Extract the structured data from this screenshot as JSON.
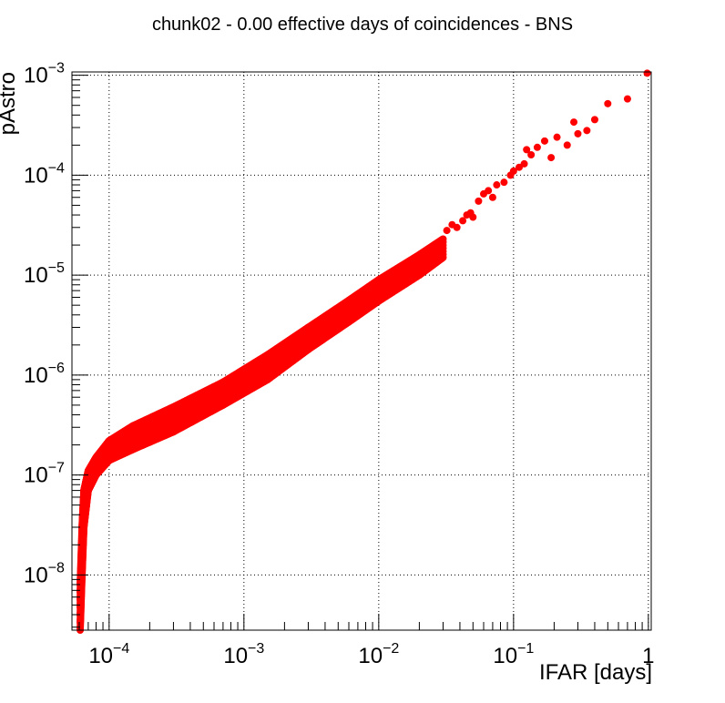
{
  "chart_data": {
    "type": "scatter",
    "title": "chunk02 - 0.00 effective days of coincidences - BNS",
    "xlabel": "IFAR [days]",
    "ylabel": "pAstro",
    "x_scale": "log",
    "y_scale": "log",
    "xlim": [
      5.3e-05,
      1.05
    ],
    "ylim": [
      2.8e-09,
      0.00108
    ],
    "grid": true,
    "marker_color": "#ff0000",
    "x_tick_labels": [
      {
        "value": 0.0001,
        "base": "10",
        "exp": "−4"
      },
      {
        "value": 0.001,
        "base": "10",
        "exp": "−3"
      },
      {
        "value": 0.01,
        "base": "10",
        "exp": "−2"
      },
      {
        "value": 0.1,
        "base": "10",
        "exp": "−1"
      },
      {
        "value": 1,
        "base": "1",
        "exp": ""
      }
    ],
    "y_tick_labels": [
      {
        "value": 1e-08,
        "base": "10",
        "exp": "−8"
      },
      {
        "value": 1e-07,
        "base": "10",
        "exp": "−7"
      },
      {
        "value": 1e-06,
        "base": "10",
        "exp": "−6"
      },
      {
        "value": 1e-05,
        "base": "10",
        "exp": "−5"
      },
      {
        "value": 0.0001,
        "base": "10",
        "exp": "−4"
      },
      {
        "value": 0.001,
        "base": "10",
        "exp": "−3"
      }
    ],
    "dense_band": {
      "x": [
        6.1e-05,
        6.3e-05,
        6.5e-05,
        7e-05,
        8e-05,
        0.0001,
        0.00015,
        0.0003,
        0.0007,
        0.0015,
        0.003,
        0.006,
        0.01,
        0.02,
        0.03
      ],
      "y_low": [
        2.8e-09,
        1e-08,
        3e-08,
        7e-08,
        1e-07,
        1.4e-07,
        1.8e-07,
        2.7e-07,
        5e-07,
        9e-07,
        1.8e-06,
        3.4e-06,
        5.5e-06,
        1e-05,
        1.5e-05
      ],
      "y_high": [
        8e-09,
        3e-08,
        7e-08,
        1.1e-07,
        1.5e-07,
        2.2e-07,
        3.1e-07,
        4.8e-07,
        8.5e-07,
        1.6e-06,
        3e-06,
        5.6e-06,
        9e-06,
        1.6e-05,
        2.3e-05
      ]
    },
    "sparse_points": {
      "x": [
        0.032,
        0.035,
        0.038,
        0.042,
        0.045,
        0.048,
        0.05,
        0.055,
        0.06,
        0.065,
        0.07,
        0.075,
        0.085,
        0.095,
        0.1,
        0.11,
        0.12,
        0.125,
        0.135,
        0.15,
        0.17,
        0.19,
        0.21,
        0.25,
        0.28,
        0.3,
        0.35,
        0.4,
        0.5,
        0.7,
        0.98
      ],
      "y": [
        2.8e-05,
        3.2e-05,
        3e-05,
        3.5e-05,
        4e-05,
        4.2e-05,
        3.8e-05,
        5.5e-05,
        6.5e-05,
        7e-05,
        6e-05,
        8e-05,
        8.5e-05,
        0.0001,
        0.00011,
        0.00012,
        0.00013,
        0.00018,
        0.00016,
        0.00019,
        0.00022,
        0.00015,
        0.00024,
        0.0002,
        0.00034,
        0.00026,
        0.00028,
        0.00036,
        0.00052,
        0.00058,
        0.00105
      ]
    }
  }
}
